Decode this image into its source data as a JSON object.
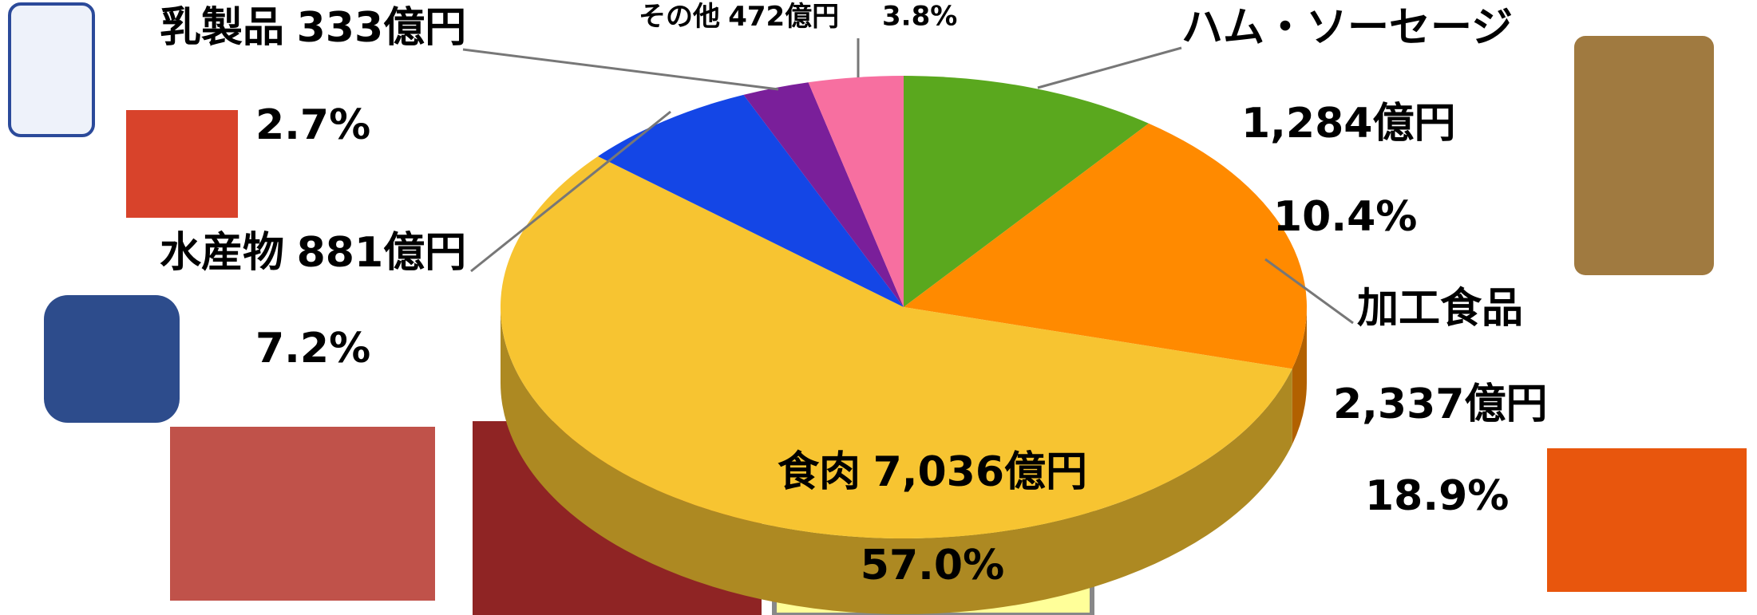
{
  "chart_data": {
    "type": "pie",
    "categories": [
      "ハム・ソーセージ",
      "加工食品",
      "食肉",
      "水産物",
      "乳製品",
      "その他"
    ],
    "values": [
      10.4,
      18.9,
      57.0,
      7.2,
      2.7,
      3.8
    ],
    "value_labels": [
      "10.4%",
      "18.9%",
      "57.0%",
      "7.2%",
      "2.7%",
      "3.8%"
    ],
    "amounts": [
      1284,
      2337,
      7036,
      881,
      333,
      472
    ],
    "amount_labels": [
      "1,284億円",
      "2,337億円",
      "7,036億円",
      "881億円",
      "333億円",
      "472億円"
    ],
    "colors": [
      "#5aa81e",
      "#ff8a00",
      "#f7c431",
      "#1446e6",
      "#7a1f9a",
      "#f76fa0"
    ]
  }
}
